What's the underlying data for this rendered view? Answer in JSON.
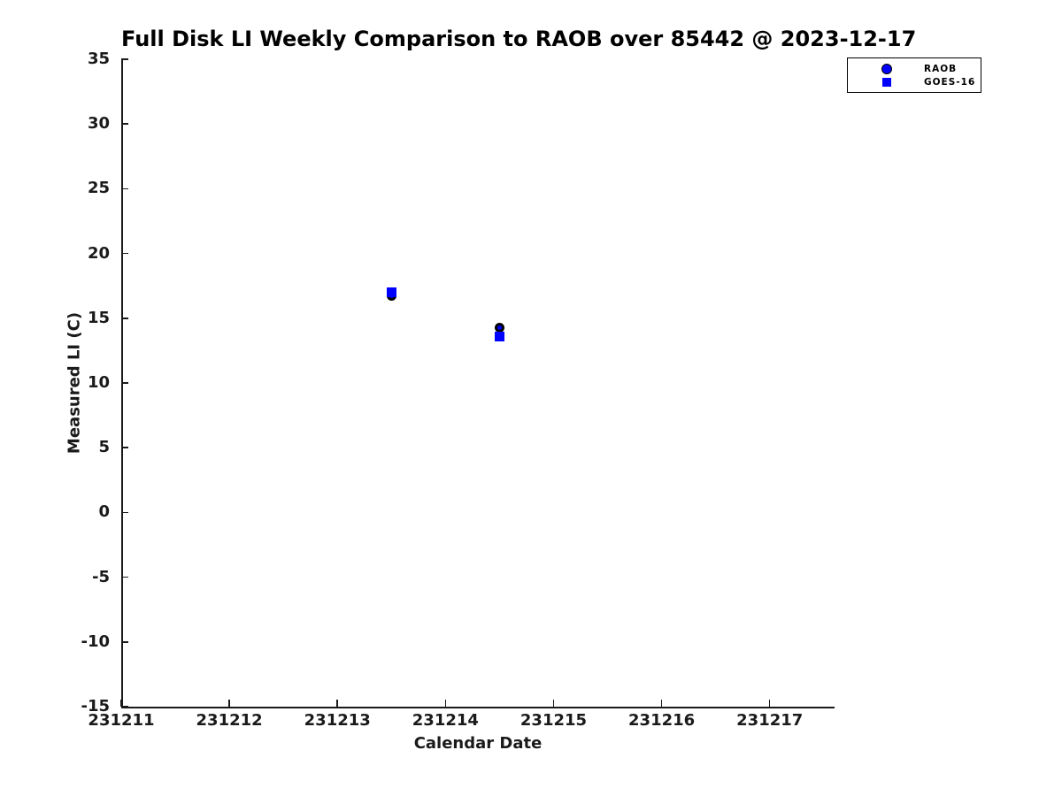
{
  "figure": {
    "background": "#FFFFFF"
  },
  "colors": {
    "marker_blue": "#0000FF",
    "raob_edge": "#000000",
    "axis": "#1A1A1A",
    "title_text": "#000000",
    "background": "#FFFFFF"
  },
  "chart_data": {
    "type": "scatter",
    "title": "Full Disk LI Weekly Comparison to RAOB over 85442 @ 2023-12-17",
    "xlabel": "Calendar Date",
    "ylabel": "Measured LI (C)",
    "xlim": [
      231211,
      231217.6
    ],
    "ylim": [
      -15,
      35
    ],
    "xticks": [
      231211,
      231212,
      231213,
      231214,
      231215,
      231216,
      231217
    ],
    "yticks": [
      35,
      30,
      25,
      20,
      15,
      10,
      5,
      0,
      -5,
      -10,
      -15
    ],
    "grid": false,
    "legend": {
      "position": "top-right"
    },
    "series": [
      {
        "name": "RAOB",
        "marker": "circle",
        "face_color": "#0000FF",
        "edge_color": "#000000",
        "points": [
          {
            "x": 231213.5,
            "y": 16.7
          },
          {
            "x": 231214.5,
            "y": 14.3
          }
        ]
      },
      {
        "name": "GOES-16",
        "marker": "square",
        "face_color": "#0000FF",
        "edge_color": "#0000FF",
        "points": [
          {
            "x": 231213.5,
            "y": 17.0
          },
          {
            "x": 231214.5,
            "y": 13.6
          }
        ]
      }
    ]
  }
}
